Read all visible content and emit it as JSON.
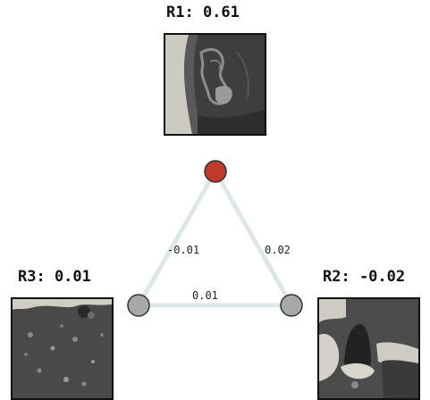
{
  "nodes": [
    {
      "id": "R1",
      "label": "R1: 0.61",
      "color": "#c0392b"
    },
    {
      "id": "R2",
      "label": "R2: -0.02",
      "color": "#a8a8a8"
    },
    {
      "id": "R3",
      "label": "R3: 0.01",
      "color": "#a8a8a8"
    }
  ],
  "edges": [
    {
      "from": "R1",
      "to": "R3",
      "value": "-0.01"
    },
    {
      "from": "R1",
      "to": "R2",
      "value": "0.02"
    },
    {
      "from": "R3",
      "to": "R2",
      "value": "0.01"
    }
  ],
  "colors": {
    "edge": "#dfe8ec",
    "node_outline": "#333333"
  }
}
